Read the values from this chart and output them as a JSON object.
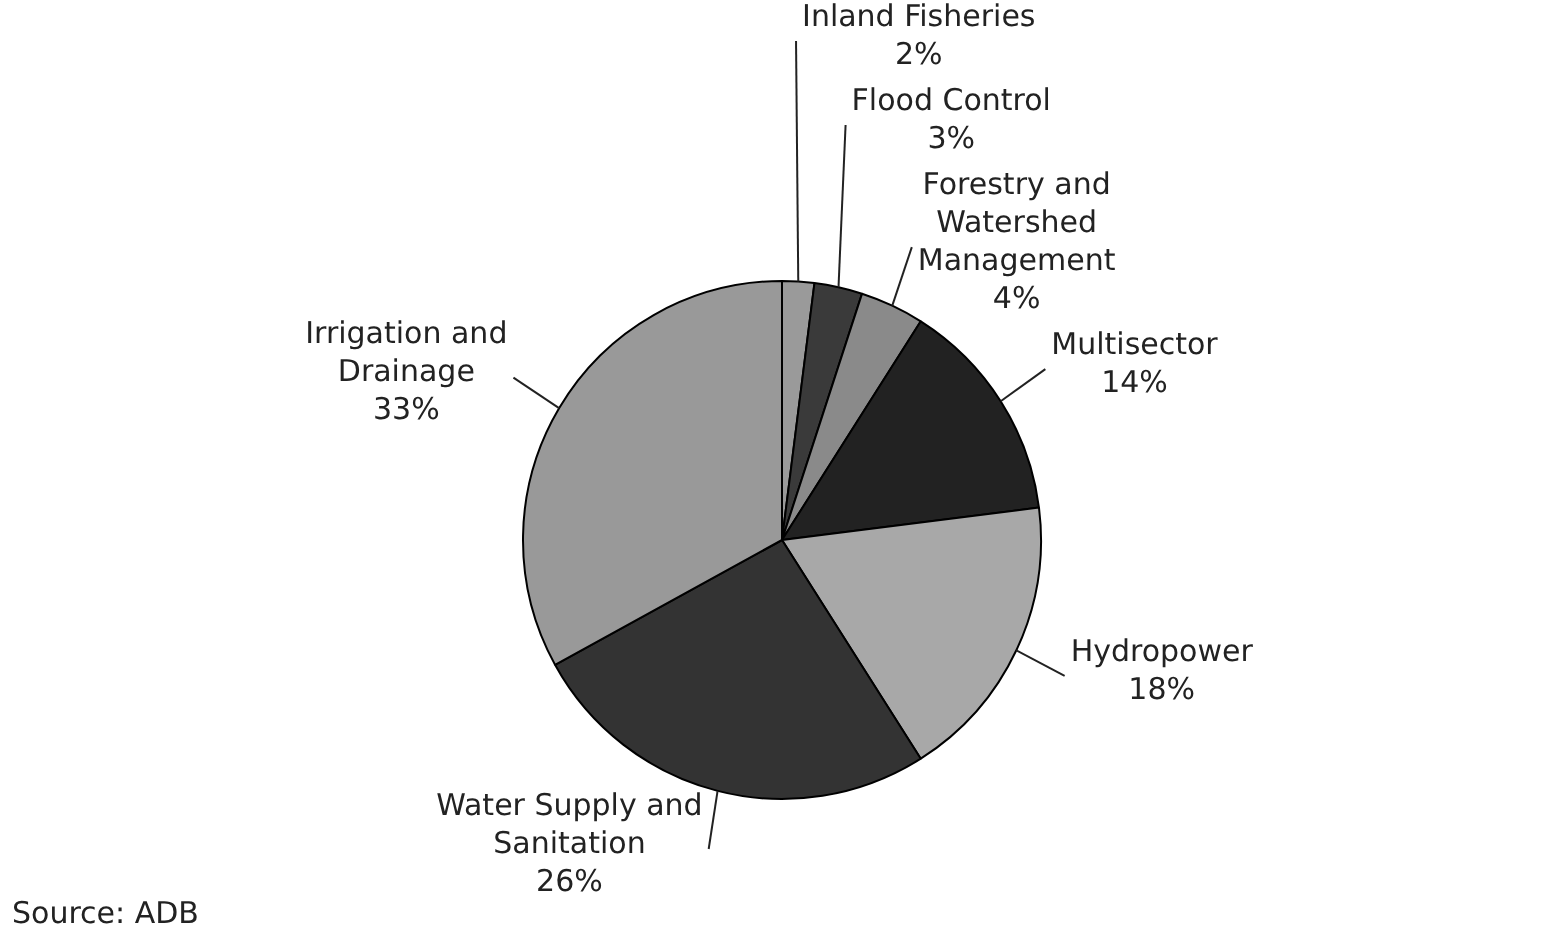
{
  "chart_data": {
    "type": "pie",
    "categories": [
      "Inland Fisheries",
      "Flood Control",
      "Forestry and Watershed Management",
      "Multisector",
      "Hydropower",
      "Water Supply and Sanitation",
      "Irrigation and Drainage"
    ],
    "values": [
      2,
      3,
      4,
      14,
      18,
      26,
      33
    ],
    "value_labels": [
      "2%",
      "3%",
      "4%",
      "14%",
      "18%",
      "26%",
      "33%"
    ],
    "colors": [
      "#9a9a9a",
      "#3a3a3a",
      "#8a8a8a",
      "#222222",
      "#a8a8a8",
      "#333333",
      "#999999"
    ],
    "legend": false,
    "annotations": [
      "Source: ADB"
    ]
  }
}
